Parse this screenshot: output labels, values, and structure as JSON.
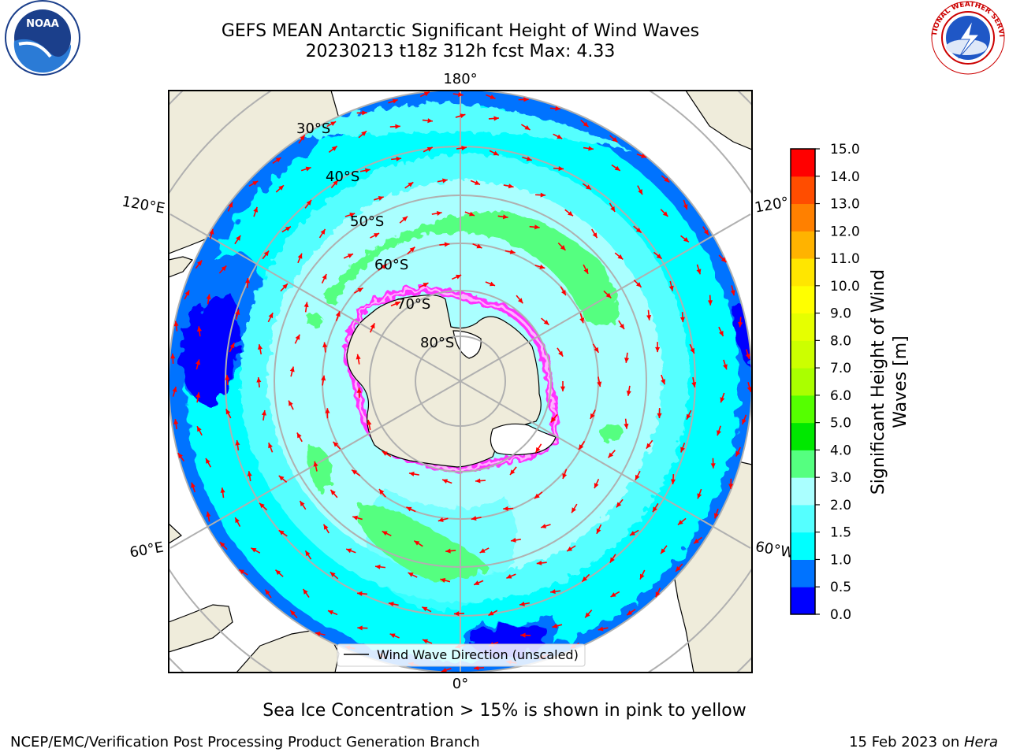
{
  "title": {
    "line1": "GEFS MEAN Antarctic Significant Height of Wind Waves",
    "line2": "20230213 t18z 312h fcst    Max: 4.33"
  },
  "map": {
    "lon_labels": {
      "top": "180°",
      "bottom": "0°",
      "upper_left": "120°E",
      "upper_right": "120°",
      "lower_left": "60°E",
      "lower_right": "60°W"
    },
    "lat_labels": [
      "30°S",
      "40°S",
      "50°S",
      "60°S",
      "70°S",
      "80°S"
    ],
    "legend": "Wind Wave Direction (unscaled)",
    "colors": {
      "land": "#efecdb",
      "ice_shelf": "#ffffff",
      "grid": "#b0b0b0",
      "arrow": "#ff0000"
    }
  },
  "colorbar": {
    "label_line1": "Significant Height of Wind",
    "label_line2": "Waves [m]",
    "ticks": [
      "0.0",
      "0.5",
      "1.0",
      "1.5",
      "2.0",
      "3.0",
      "4.0",
      "5.0",
      "6.0",
      "7.0",
      "8.0",
      "9.0",
      "10.0",
      "11.0",
      "12.0",
      "13.0",
      "14.0",
      "15.0"
    ],
    "colors": [
      "#0000ff",
      "#0073ff",
      "#00ffff",
      "#55ffff",
      "#aaffff",
      "#55ff80",
      "#00e800",
      "#55ff00",
      "#aaff00",
      "#ccff00",
      "#e6ff00",
      "#ffff00",
      "#ffe600",
      "#ffb300",
      "#ff8000",
      "#ff4d00",
      "#ff0000"
    ]
  },
  "caption": "Sea Ice Concentration > 15% is shown in pink to yellow",
  "footer": {
    "left": "NCEP/EMC/Verification Post Processing Product Generation Branch",
    "right_prefix": "15 Feb 2023 on ",
    "right_host": "Hera"
  },
  "logos": {
    "noaa_text": "NOAA",
    "nws_text": "NATIONAL WEATHER SERVICE"
  }
}
